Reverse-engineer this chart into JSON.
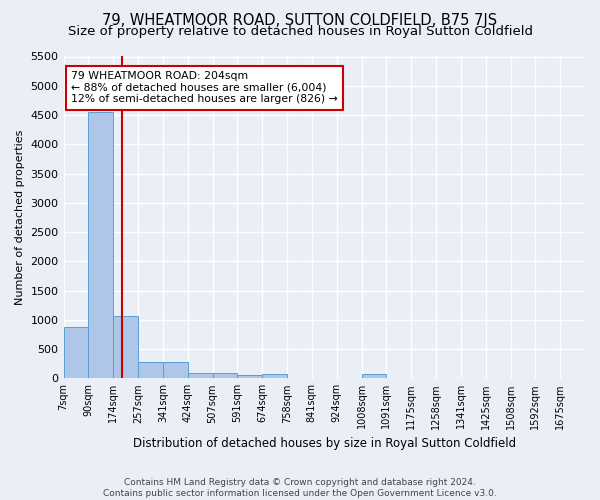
{
  "title": "79, WHEATMOOR ROAD, SUTTON COLDFIELD, B75 7JS",
  "subtitle": "Size of property relative to detached houses in Royal Sutton Coldfield",
  "xlabel": "Distribution of detached houses by size in Royal Sutton Coldfield",
  "ylabel": "Number of detached properties",
  "footer_line1": "Contains HM Land Registry data © Crown copyright and database right 2024.",
  "footer_line2": "Contains public sector information licensed under the Open Government Licence v3.0.",
  "bin_labels": [
    "7sqm",
    "90sqm",
    "174sqm",
    "257sqm",
    "341sqm",
    "424sqm",
    "507sqm",
    "591sqm",
    "674sqm",
    "758sqm",
    "841sqm",
    "924sqm",
    "1008sqm",
    "1091sqm",
    "1175sqm",
    "1258sqm",
    "1341sqm",
    "1425sqm",
    "1508sqm",
    "1592sqm",
    "1675sqm"
  ],
  "bar_heights": [
    880,
    4550,
    1060,
    280,
    275,
    90,
    90,
    60,
    70,
    0,
    0,
    0,
    70,
    0,
    0,
    0,
    0,
    0,
    0,
    0,
    0
  ],
  "bar_color": "#aec6e8",
  "bar_edge_color": "#5a9fd4",
  "property_line_bin": 2.57,
  "property_line_color": "#cc0000",
  "annotation_text": "79 WHEATMOOR ROAD: 204sqm\n← 88% of detached houses are smaller (6,004)\n12% of semi-detached houses are larger (826) →",
  "annotation_box_color": "#ffffff",
  "annotation_box_edge": "#cc0000",
  "ylim": [
    0,
    5500
  ],
  "yticks": [
    0,
    500,
    1000,
    1500,
    2000,
    2500,
    3000,
    3500,
    4000,
    4500,
    5000,
    5500
  ],
  "bg_color": "#eaeff7",
  "grid_color": "#ffffff",
  "title_fontsize": 10.5,
  "subtitle_fontsize": 9.5
}
